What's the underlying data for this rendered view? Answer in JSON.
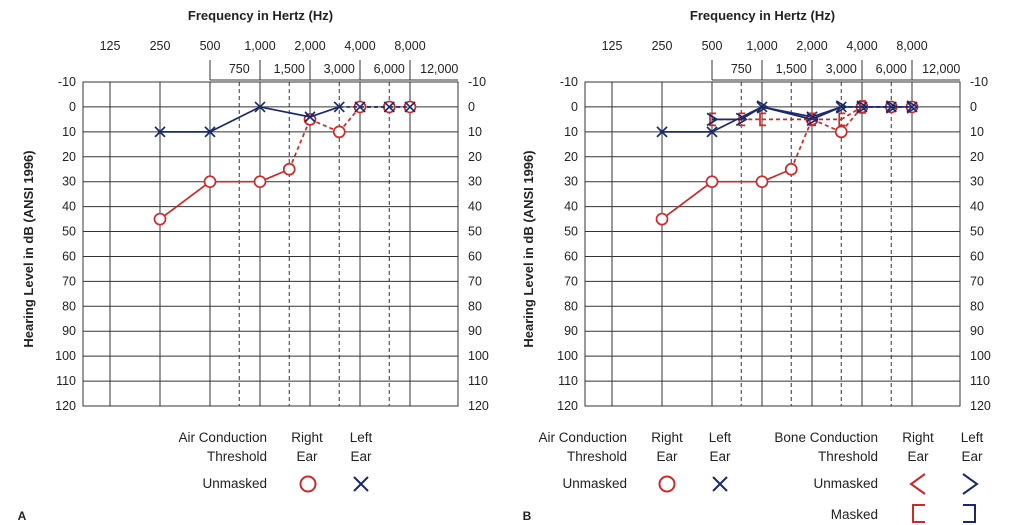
{
  "colors": {
    "right": "#cc2a2a",
    "left": "#1b2a6b",
    "grid": "#333333"
  },
  "shared": {
    "title": "Frequency in Hertz (Hz)",
    "ylabel": "Hearing Level in dB (ANSI 1996)",
    "top_freqs": [
      "125",
      "250",
      "500",
      "1,000",
      "2,000",
      "4,000",
      "8,000"
    ],
    "mid_freqs": [
      "750",
      "1,500",
      "3,000",
      "6,000",
      "12,000"
    ],
    "y_ticks": [
      "-10",
      "0",
      "10",
      "20",
      "30",
      "40",
      "50",
      "60",
      "70",
      "80",
      "90",
      "100",
      "110",
      "120"
    ]
  },
  "legend": {
    "air_line1": "Air Conduction",
    "air_line2": "Threshold",
    "bone_line1": "Bone Conduction",
    "bone_line2": "Threshold",
    "right_line1": "Right",
    "right_line2": "Ear",
    "left_line1": "Left",
    "left_line2": "Ear",
    "unmasked": "Unmasked",
    "masked": "Masked"
  },
  "chart_data": [
    {
      "panel_label": "A",
      "type": "line",
      "title": "Frequency in Hertz (Hz)",
      "ylabel": "Hearing Level in dB (ANSI 1996)",
      "ylim": [
        -10,
        120
      ],
      "y_inverted": true,
      "x_scale": "log2",
      "series": [
        {
          "ear": "right",
          "kind": "air-unmasked",
          "marker": "circle",
          "line": "solid-dashed",
          "points": [
            [
              250,
              45
            ],
            [
              500,
              30
            ],
            [
              1000,
              30
            ],
            [
              1500,
              25
            ],
            [
              2000,
              5
            ],
            [
              3000,
              10
            ],
            [
              4000,
              0
            ],
            [
              6000,
              0
            ],
            [
              8000,
              0
            ]
          ],
          "dashed_from_index": 3
        },
        {
          "ear": "left",
          "kind": "air-unmasked",
          "marker": "x",
          "line": "solid-dashed",
          "points": [
            [
              250,
              10
            ],
            [
              500,
              10
            ],
            [
              1000,
              0
            ],
            [
              2000,
              4
            ],
            [
              3000,
              0
            ],
            [
              4000,
              0
            ],
            [
              6000,
              0
            ],
            [
              8000,
              0
            ]
          ],
          "dashed_from_index": 4
        }
      ]
    },
    {
      "panel_label": "B",
      "type": "line",
      "title": "Frequency in Hertz (Hz)",
      "ylabel": "Hearing Level in dB (ANSI 1996)",
      "ylim": [
        -10,
        120
      ],
      "y_inverted": true,
      "x_scale": "log2",
      "series": [
        {
          "ear": "right",
          "kind": "air-unmasked",
          "marker": "circle",
          "line": "solid-dashed",
          "points": [
            [
              250,
              45
            ],
            [
              500,
              30
            ],
            [
              1000,
              30
            ],
            [
              1500,
              25
            ],
            [
              2000,
              5
            ],
            [
              3000,
              10
            ],
            [
              4000,
              0
            ],
            [
              6000,
              0
            ],
            [
              8000,
              0
            ]
          ],
          "dashed_from_index": 3
        },
        {
          "ear": "left",
          "kind": "air-unmasked",
          "marker": "x",
          "line": "solid-dashed",
          "points": [
            [
              250,
              10
            ],
            [
              500,
              10
            ],
            [
              1000,
              0
            ],
            [
              2000,
              4
            ],
            [
              3000,
              0
            ],
            [
              4000,
              0
            ],
            [
              6000,
              0
            ],
            [
              8000,
              0
            ]
          ],
          "dashed_from_index": 4
        },
        {
          "ear": "right",
          "kind": "bone-masked",
          "marker": "bracket-open",
          "line": "dashed",
          "points": [
            [
              500,
              5
            ],
            [
              750,
              5
            ],
            [
              1000,
              5
            ],
            [
              2000,
              5
            ],
            [
              3000,
              5
            ],
            [
              4000,
              0
            ]
          ]
        },
        {
          "ear": "left",
          "kind": "bone-unmasked",
          "marker": "gt",
          "line": "solid",
          "points": [
            [
              500,
              5
            ],
            [
              750,
              5
            ],
            [
              1000,
              0
            ],
            [
              2000,
              5
            ],
            [
              3000,
              0
            ],
            [
              4000,
              0
            ],
            [
              6000,
              0
            ],
            [
              8000,
              0
            ]
          ]
        }
      ]
    }
  ]
}
